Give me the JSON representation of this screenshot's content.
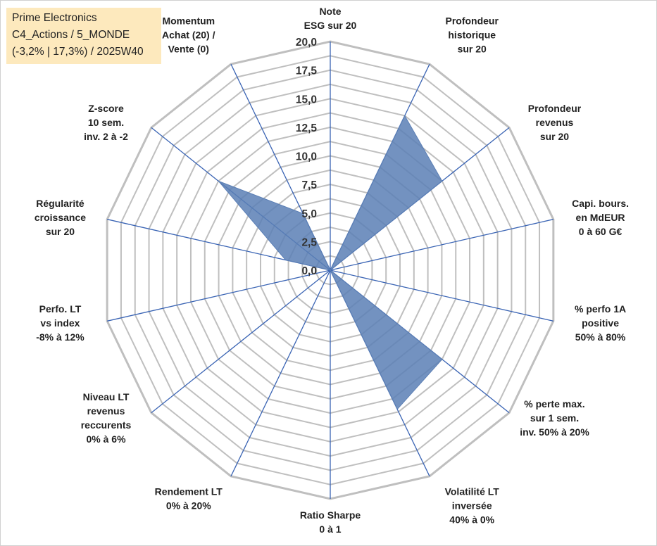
{
  "info_box": {
    "line1": "Prime Electronics",
    "line2": "C4_Actions / 5_MONDE",
    "line3": "(-3,2% | 17,3%) / 2025W40"
  },
  "colors": {
    "grid": "#bfbfbf",
    "axis": "#3a64b4",
    "fill": "#5b7fb5",
    "background": "#ffffff",
    "info_box": "#fde9bd"
  },
  "chart_data": {
    "type": "radar",
    "title": "",
    "range": [
      0,
      20
    ],
    "tick_step": 2.5,
    "tick_labels": [
      "0,0",
      "2,5",
      "5,0",
      "7,5",
      "10,0",
      "12,5",
      "15,0",
      "17,5",
      "20,0"
    ],
    "grid": true,
    "categories": [
      [
        "Note",
        "ESG sur 20"
      ],
      [
        "Profondeur",
        "historique",
        "sur 20"
      ],
      [
        "Profondeur",
        "revenus",
        "sur 20"
      ],
      [
        "Capi. bours.",
        "en MdEUR",
        "0 à 60 G€"
      ],
      [
        "% perfo 1A",
        "positive",
        "50% à 80%"
      ],
      [
        "% perte max.",
        "sur 1 sem.",
        "inv. 50% à 20%"
      ],
      [
        "Volatilité LT",
        "inversée",
        "40% à 0%"
      ],
      [
        "Ratio Sharpe",
        "0 à 1"
      ],
      [
        "Rendement LT",
        "0% à 20%"
      ],
      [
        "Niveau LT",
        "revenus",
        "reccurents",
        "0% à 6%"
      ],
      [
        "Perfo. LT",
        "vs index",
        "-8% à 12%"
      ],
      [
        "Régularité",
        "croissance",
        "sur 20"
      ],
      [
        "Z-score",
        "10 sem.",
        "inv. 2 à -2"
      ],
      [
        "Momentum",
        "Achat (20) /",
        "Vente (0)"
      ]
    ],
    "values": [
      0,
      15,
      12.5,
      0,
      0,
      12.5,
      13.5,
      0,
      0,
      0,
      0,
      4,
      12.5,
      5.5
    ]
  }
}
